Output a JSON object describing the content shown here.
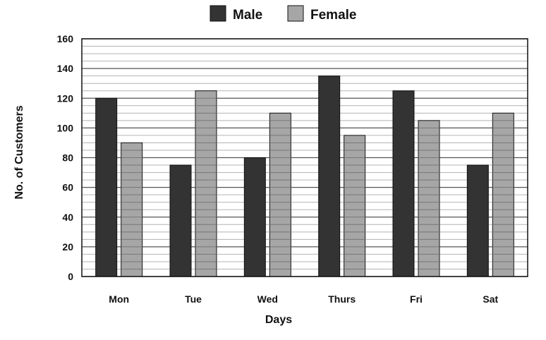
{
  "chart_data": {
    "type": "bar",
    "categories": [
      "Mon",
      "Tue",
      "Wed",
      "Thurs",
      "Fri",
      "Sat"
    ],
    "series": [
      {
        "name": "Male",
        "values": [
          120,
          75,
          80,
          135,
          125,
          75
        ],
        "color": "#333333"
      },
      {
        "name": "Female",
        "values": [
          90,
          125,
          110,
          95,
          105,
          110
        ],
        "color": "#a6a6a6",
        "hatched": true
      }
    ],
    "title": "",
    "xlabel": "Days",
    "ylabel": "No. of Customers",
    "ylim": [
      0,
      160
    ],
    "yticks": [
      0,
      20,
      40,
      60,
      80,
      100,
      120,
      140,
      160
    ],
    "grid": true,
    "legend_position": "top-center"
  }
}
